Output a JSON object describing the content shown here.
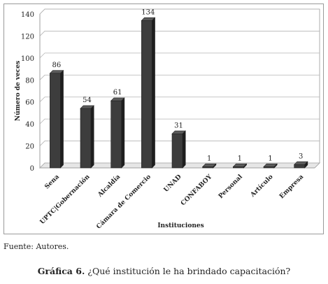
{
  "chart_data": {
    "type": "bar",
    "categories": [
      "Sena",
      "UPTC|Gobernación",
      "Alcaldía",
      "Cámara de Comercio",
      "UNAD",
      "CONFABOY",
      "Personal",
      "Artículo",
      "Empresa"
    ],
    "values": [
      86,
      54,
      61,
      134,
      31,
      1,
      1,
      1,
      3
    ],
    "ylabel": "Número de veces",
    "xlabel": "Instituciones",
    "ylim": [
      0,
      140
    ],
    "yticks": [
      0,
      20,
      40,
      60,
      80,
      100,
      120,
      140
    ],
    "grid": true,
    "bar_color": "#3d3d3d",
    "style": "3d"
  },
  "source": {
    "label": "Fuente:",
    "text": " Autores."
  },
  "caption": {
    "label": "Gráfica 6.",
    "text": " ¿Qué institución le ha brindado capacitación?"
  }
}
